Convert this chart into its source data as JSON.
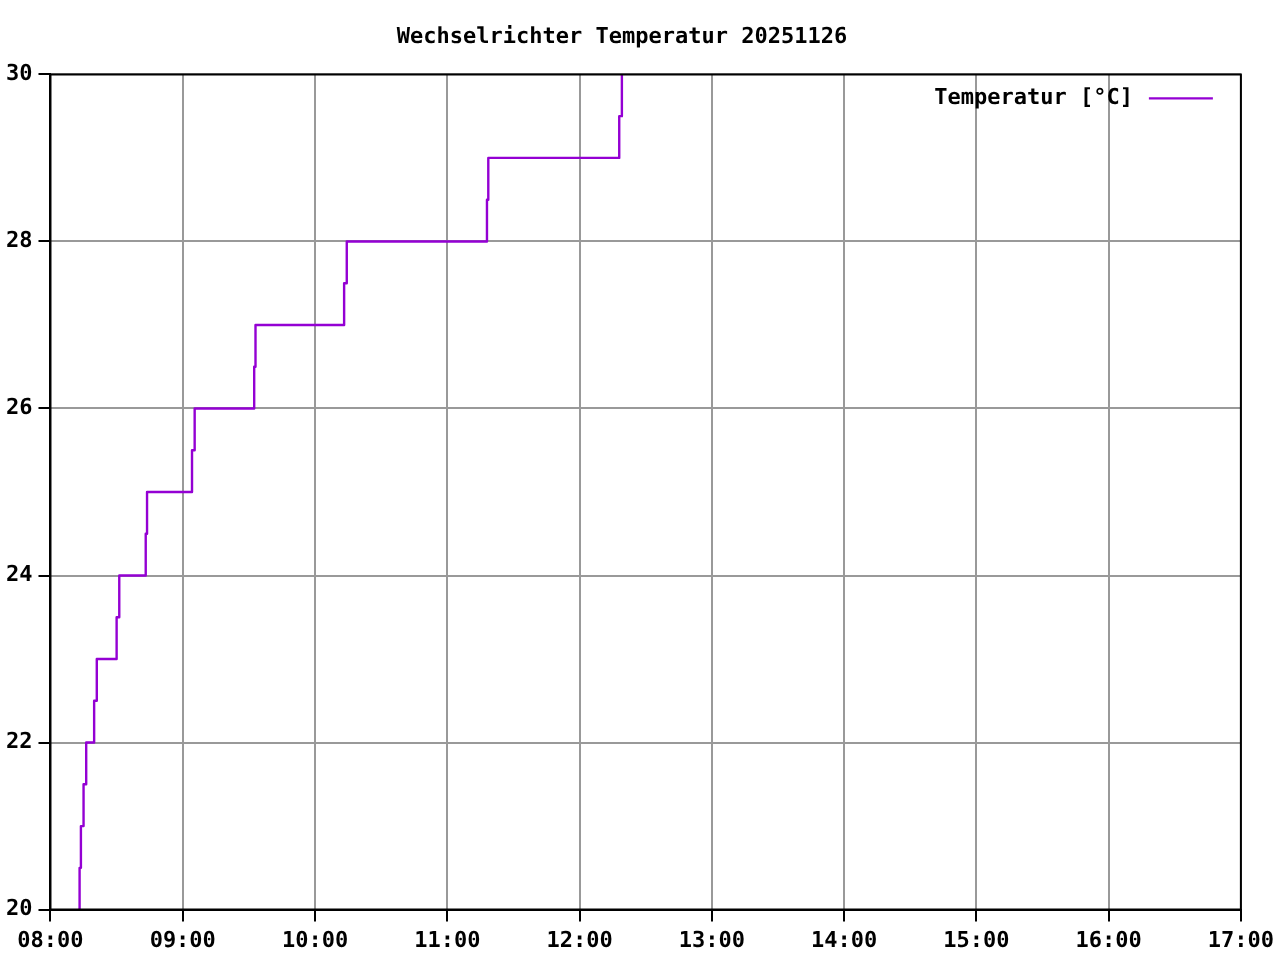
{
  "chart_data": {
    "type": "step",
    "title": "Wechselrichter Temperatur 20251126",
    "x": [
      8.21,
      8.22,
      8.23,
      8.25,
      8.27,
      8.33,
      8.35,
      8.5,
      8.52,
      8.72,
      8.73,
      9.07,
      9.09,
      9.54,
      9.55,
      10.22,
      10.24,
      11.3,
      11.31,
      12.3,
      12.32
    ],
    "series": [
      {
        "name": "Temperatur [°C]",
        "color": "#9400d3",
        "values": [
          20,
          20.5,
          21,
          21.5,
          22,
          22.5,
          23,
          23.5,
          24,
          24.5,
          25,
          25.5,
          26,
          26.5,
          27,
          27.5,
          28,
          28.5,
          29,
          29.5,
          30
        ]
      }
    ],
    "xlim": [
      8,
      17
    ],
    "xticks": [
      {
        "value": 8,
        "label": "08:00"
      },
      {
        "value": 9,
        "label": "09:00"
      },
      {
        "value": 10,
        "label": "10:00"
      },
      {
        "value": 11,
        "label": "11:00"
      },
      {
        "value": 12,
        "label": "12:00"
      },
      {
        "value": 13,
        "label": "13:00"
      },
      {
        "value": 14,
        "label": "14:00"
      },
      {
        "value": 15,
        "label": "15:00"
      },
      {
        "value": 16,
        "label": "16:00"
      },
      {
        "value": 17,
        "label": "17:00"
      }
    ],
    "ylim": [
      20,
      30
    ],
    "yticks": [
      20,
      22,
      24,
      26,
      28,
      30
    ],
    "grid": true,
    "legend": "top right"
  }
}
